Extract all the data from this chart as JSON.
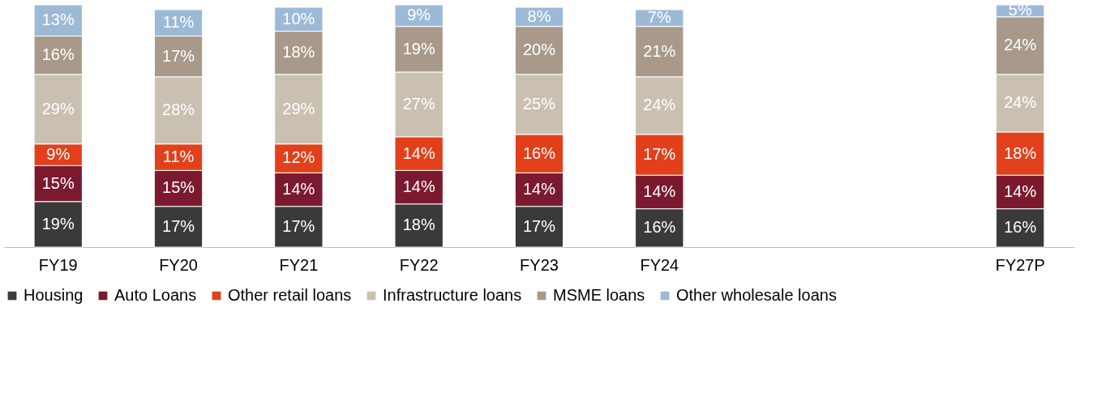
{
  "chart_data": {
    "type": "bar",
    "stacked": true,
    "legend": "bottom",
    "grid": false,
    "categories": [
      "FY19",
      "FY20",
      "FY21",
      "FY22",
      "FY23",
      "FY24",
      null,
      null,
      "FY27P"
    ],
    "series": [
      {
        "name": "Housing",
        "color": "#3a3a3a",
        "values": [
          19,
          17,
          17,
          18,
          17,
          16,
          null,
          null,
          16
        ],
        "value_labels": [
          "19%",
          "17%",
          "17%",
          "18%",
          "17%",
          "16%",
          null,
          null,
          "16%"
        ]
      },
      {
        "name": "Auto Loans",
        "color": "#7b1a2e",
        "values": [
          15,
          15,
          14,
          14,
          14,
          14,
          null,
          null,
          14
        ],
        "value_labels": [
          "15%",
          "15%",
          "14%",
          "14%",
          "14%",
          "14%",
          null,
          null,
          "14%"
        ]
      },
      {
        "name": "Other retail loans",
        "color": "#e2401b",
        "values": [
          9,
          11,
          12,
          14,
          16,
          17,
          null,
          null,
          18
        ],
        "value_labels": [
          "9%",
          "11%",
          "12%",
          "14%",
          "16%",
          "17%",
          null,
          null,
          "18%"
        ]
      },
      {
        "name": "Infrastructure loans",
        "color": "#c9c0b2",
        "values": [
          29,
          28,
          29,
          27,
          25,
          24,
          null,
          null,
          24
        ],
        "value_labels": [
          "29%",
          "28%",
          "29%",
          "27%",
          "25%",
          "24%",
          null,
          null,
          "24%"
        ]
      },
      {
        "name": "MSME loans",
        "color": "#a8998a",
        "values": [
          16,
          17,
          18,
          19,
          20,
          21,
          null,
          null,
          24
        ],
        "value_labels": [
          "16%",
          "17%",
          "18%",
          "19%",
          "20%",
          "21%",
          null,
          null,
          "24%"
        ]
      },
      {
        "name": "Other wholesale loans",
        "color": "#9db9d8",
        "values": [
          13,
          11,
          10,
          9,
          8,
          7,
          null,
          null,
          5
        ],
        "value_labels": [
          "13%",
          "11%",
          "10%",
          "9%",
          "8%",
          "7%",
          null,
          null,
          "5%"
        ]
      }
    ]
  }
}
